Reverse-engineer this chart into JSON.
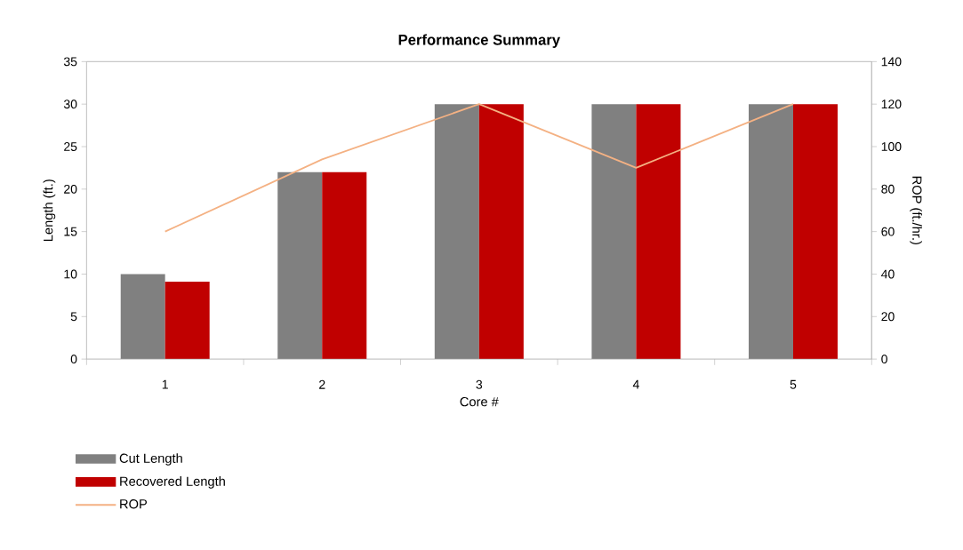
{
  "chart_data": {
    "type": "bar",
    "title": "Performance Summary",
    "xlabel": "Core #",
    "ylabel": "Length (ft.)",
    "y2label": "ROP (ft./hr.)",
    "categories": [
      "1",
      "2",
      "3",
      "4",
      "5"
    ],
    "series": [
      {
        "name": "Cut Length",
        "color": "#808080",
        "values": [
          10,
          22,
          30,
          30,
          30
        ]
      },
      {
        "name": "Recovered Length",
        "color": "#c00000",
        "values": [
          9.1,
          22,
          30,
          30,
          30
        ]
      },
      {
        "name": "ROP",
        "type": "line",
        "axis": "y2",
        "color": "#f4b183",
        "values": [
          60,
          94,
          120,
          90,
          120
        ]
      }
    ],
    "ylim": [
      0,
      35
    ],
    "yticks": [
      0,
      5,
      10,
      15,
      20,
      25,
      30,
      35
    ],
    "y2lim": [
      0,
      140
    ],
    "y2ticks": [
      0,
      20,
      40,
      60,
      80,
      100,
      120,
      140
    ],
    "legend": "bottom"
  }
}
